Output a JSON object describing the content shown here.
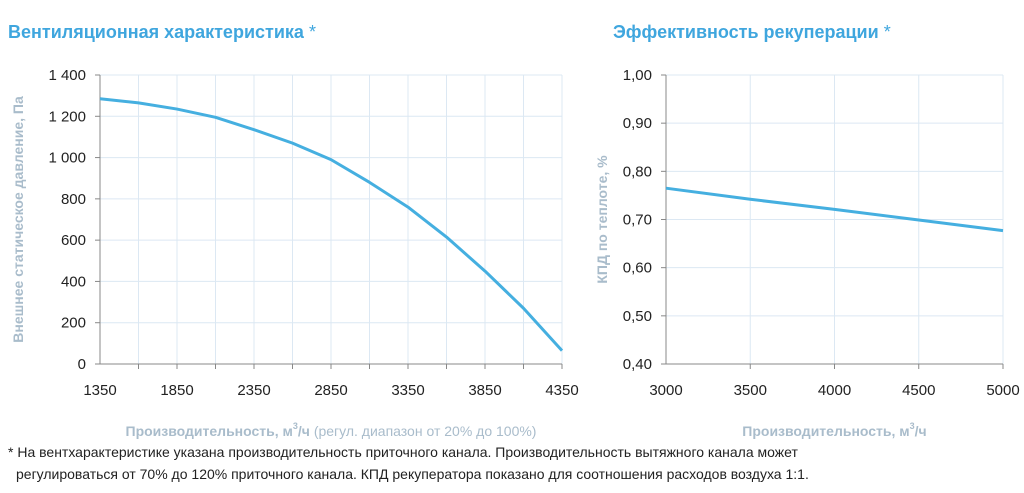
{
  "left_title": "Вентиляционная характеристика",
  "right_title": "Эффективность рекуперации",
  "title_star": "*",
  "footnote_line1": "* На вентхарактеристике указана производительность приточного канала. Производительность вытяжного канала может",
  "footnote_line2": "регулироваться от 70% до 120% приточного канала. КПД рекуператора показано для соотношения расходов воздуха 1:1.",
  "colors": {
    "title": "#3fa6de",
    "line": "#45afe0",
    "grid": "#dce8f3",
    "axis_label": "#a9bccb"
  },
  "chart_data": [
    {
      "type": "line",
      "title": "Вентиляционная характеристика",
      "xlabel_bold": "Производительность, м",
      "xlabel_sup": "3",
      "xlabel_unit": "/ч",
      "xlabel_note": "(регул. диапазон от 20% до 100%)",
      "ylabel": "Внешнее статическое давление, Па",
      "xlim": [
        1350,
        4350
      ],
      "ylim": [
        0,
        1400
      ],
      "x_ticks": [
        "1350",
        "1850",
        "2350",
        "2850",
        "3350",
        "3850",
        "4350"
      ],
      "y_ticks": [
        "0",
        "200",
        "400",
        "600",
        "800",
        "1 000",
        "1 200",
        "1 400"
      ],
      "grid": true,
      "x": [
        1350,
        1600,
        1850,
        2100,
        2350,
        2600,
        2850,
        3100,
        3350,
        3600,
        3850,
        4100,
        4350
      ],
      "y": [
        1285,
        1265,
        1235,
        1195,
        1135,
        1070,
        990,
        880,
        760,
        615,
        450,
        270,
        65
      ]
    },
    {
      "type": "line",
      "title": "Эффективность рекуперации",
      "xlabel_bold": "Производительность, м",
      "xlabel_sup": "3",
      "xlabel_unit": "/ч",
      "ylabel": "КПД по теплоте, %",
      "xlim": [
        3000,
        5000
      ],
      "ylim": [
        0.4,
        1.0
      ],
      "x_ticks": [
        "3000",
        "3500",
        "4000",
        "4500",
        "5000"
      ],
      "y_ticks": [
        "0,40",
        "0,50",
        "0,60",
        "0,70",
        "0,80",
        "0,90",
        "1,00"
      ],
      "grid": true,
      "x": [
        3000,
        3500,
        4000,
        4500,
        5000
      ],
      "y": [
        0.765,
        0.742,
        0.721,
        0.699,
        0.677
      ]
    }
  ]
}
